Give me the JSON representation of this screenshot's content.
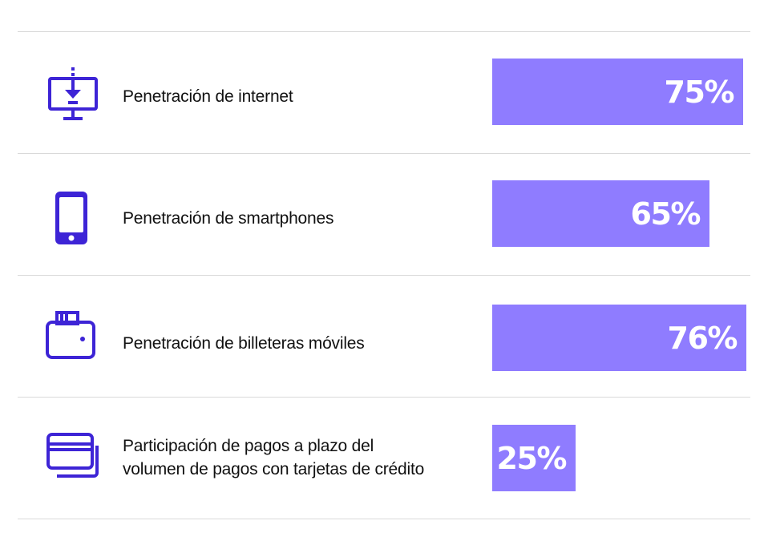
{
  "colors": {
    "bar": "#8f7cff",
    "icon": "#3d24d6",
    "divider": "#d9d9d9",
    "text": "#111111"
  },
  "chart_data": {
    "type": "bar",
    "orientation": "horizontal",
    "categories": [
      "Penetración de internet",
      "Penetración de smartphones",
      "Penetración de billeteras móviles",
      "Participación de pagos a plazo del volumen de pagos con tarjetas de crédito"
    ],
    "values": [
      75,
      65,
      76,
      25
    ],
    "value_labels": [
      "75%",
      "65%",
      "76%",
      "25%"
    ],
    "unit": "%",
    "xlim": [
      0,
      100
    ]
  },
  "rows": [
    {
      "label_lines": [
        "Penetración de internet"
      ],
      "value_label": "75%",
      "icon": "computer-download-icon"
    },
    {
      "label_lines": [
        "Penetración de smartphones"
      ],
      "value_label": "65%",
      "icon": "smartphone-icon"
    },
    {
      "label_lines": [
        "Penetración de billeteras móviles"
      ],
      "value_label": "76%",
      "icon": "wallet-icon"
    },
    {
      "label_lines": [
        "Participación de pagos a plazo del",
        "volumen de pagos con tarjetas de crédito"
      ],
      "value_label": "25%",
      "icon": "credit-cards-icon"
    }
  ]
}
